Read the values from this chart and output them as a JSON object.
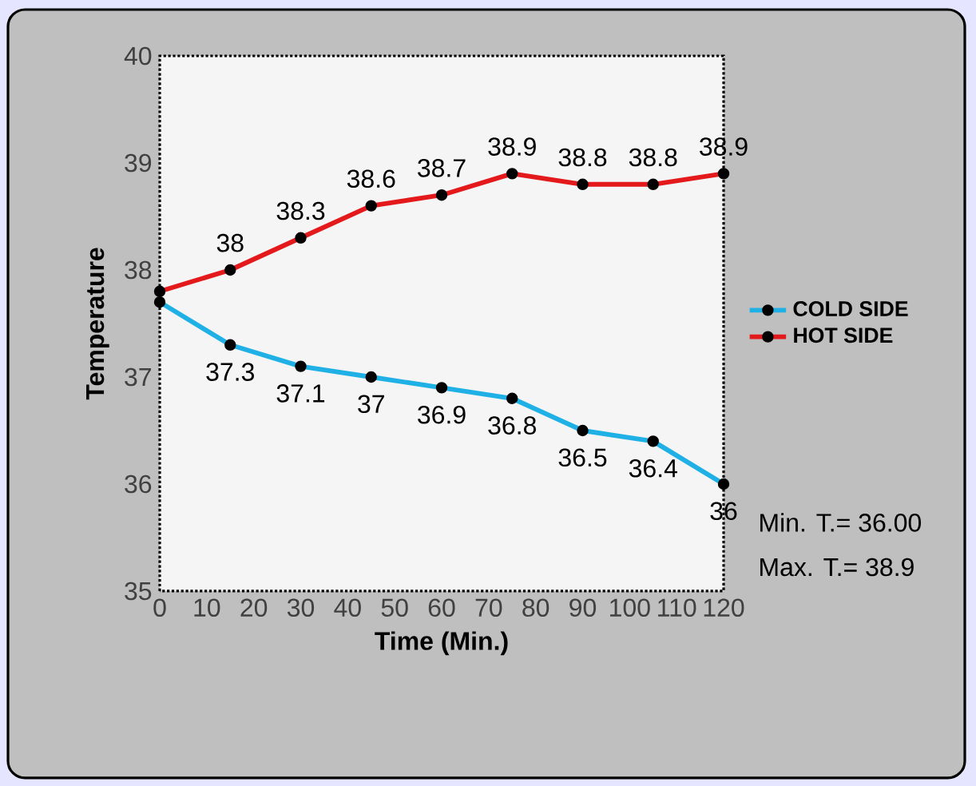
{
  "chart_data": {
    "type": "line",
    "xlabel": "Time (Min.)",
    "ylabel": "Temperature",
    "x": [
      0,
      15,
      30,
      45,
      60,
      75,
      90,
      105,
      120
    ],
    "series": [
      {
        "name": "COLD SIDE",
        "color": "#1fb0e6",
        "values": [
          37.7,
          37.3,
          37.1,
          37,
          36.9,
          36.8,
          36.5,
          36.4,
          36
        ],
        "value_labels": [
          null,
          "37.3",
          "37.1",
          "37",
          "36.9",
          "36.8",
          "36.5",
          "36.4",
          "36"
        ]
      },
      {
        "name": "HOT SIDE",
        "color": "#e3191c",
        "values": [
          37.8,
          38,
          38.3,
          38.6,
          38.7,
          38.9,
          38.8,
          38.8,
          38.9
        ],
        "value_labels": [
          null,
          "38",
          "38.3",
          "38.6",
          "38.7",
          "38.9",
          "38.8",
          "38.8",
          "38.9"
        ]
      }
    ],
    "xlim": [
      0,
      120
    ],
    "xticks": [
      0,
      10,
      20,
      30,
      40,
      50,
      60,
      70,
      80,
      90,
      100,
      110,
      120
    ],
    "ylim": [
      35,
      40
    ],
    "yticks": [
      35,
      36,
      37,
      38,
      39,
      40
    ],
    "legend": "right",
    "marker": "circle",
    "line_style": "solid",
    "grid": false,
    "annotations": [
      "Min. T.= 36.00",
      "Max. T.= 38.9"
    ]
  }
}
